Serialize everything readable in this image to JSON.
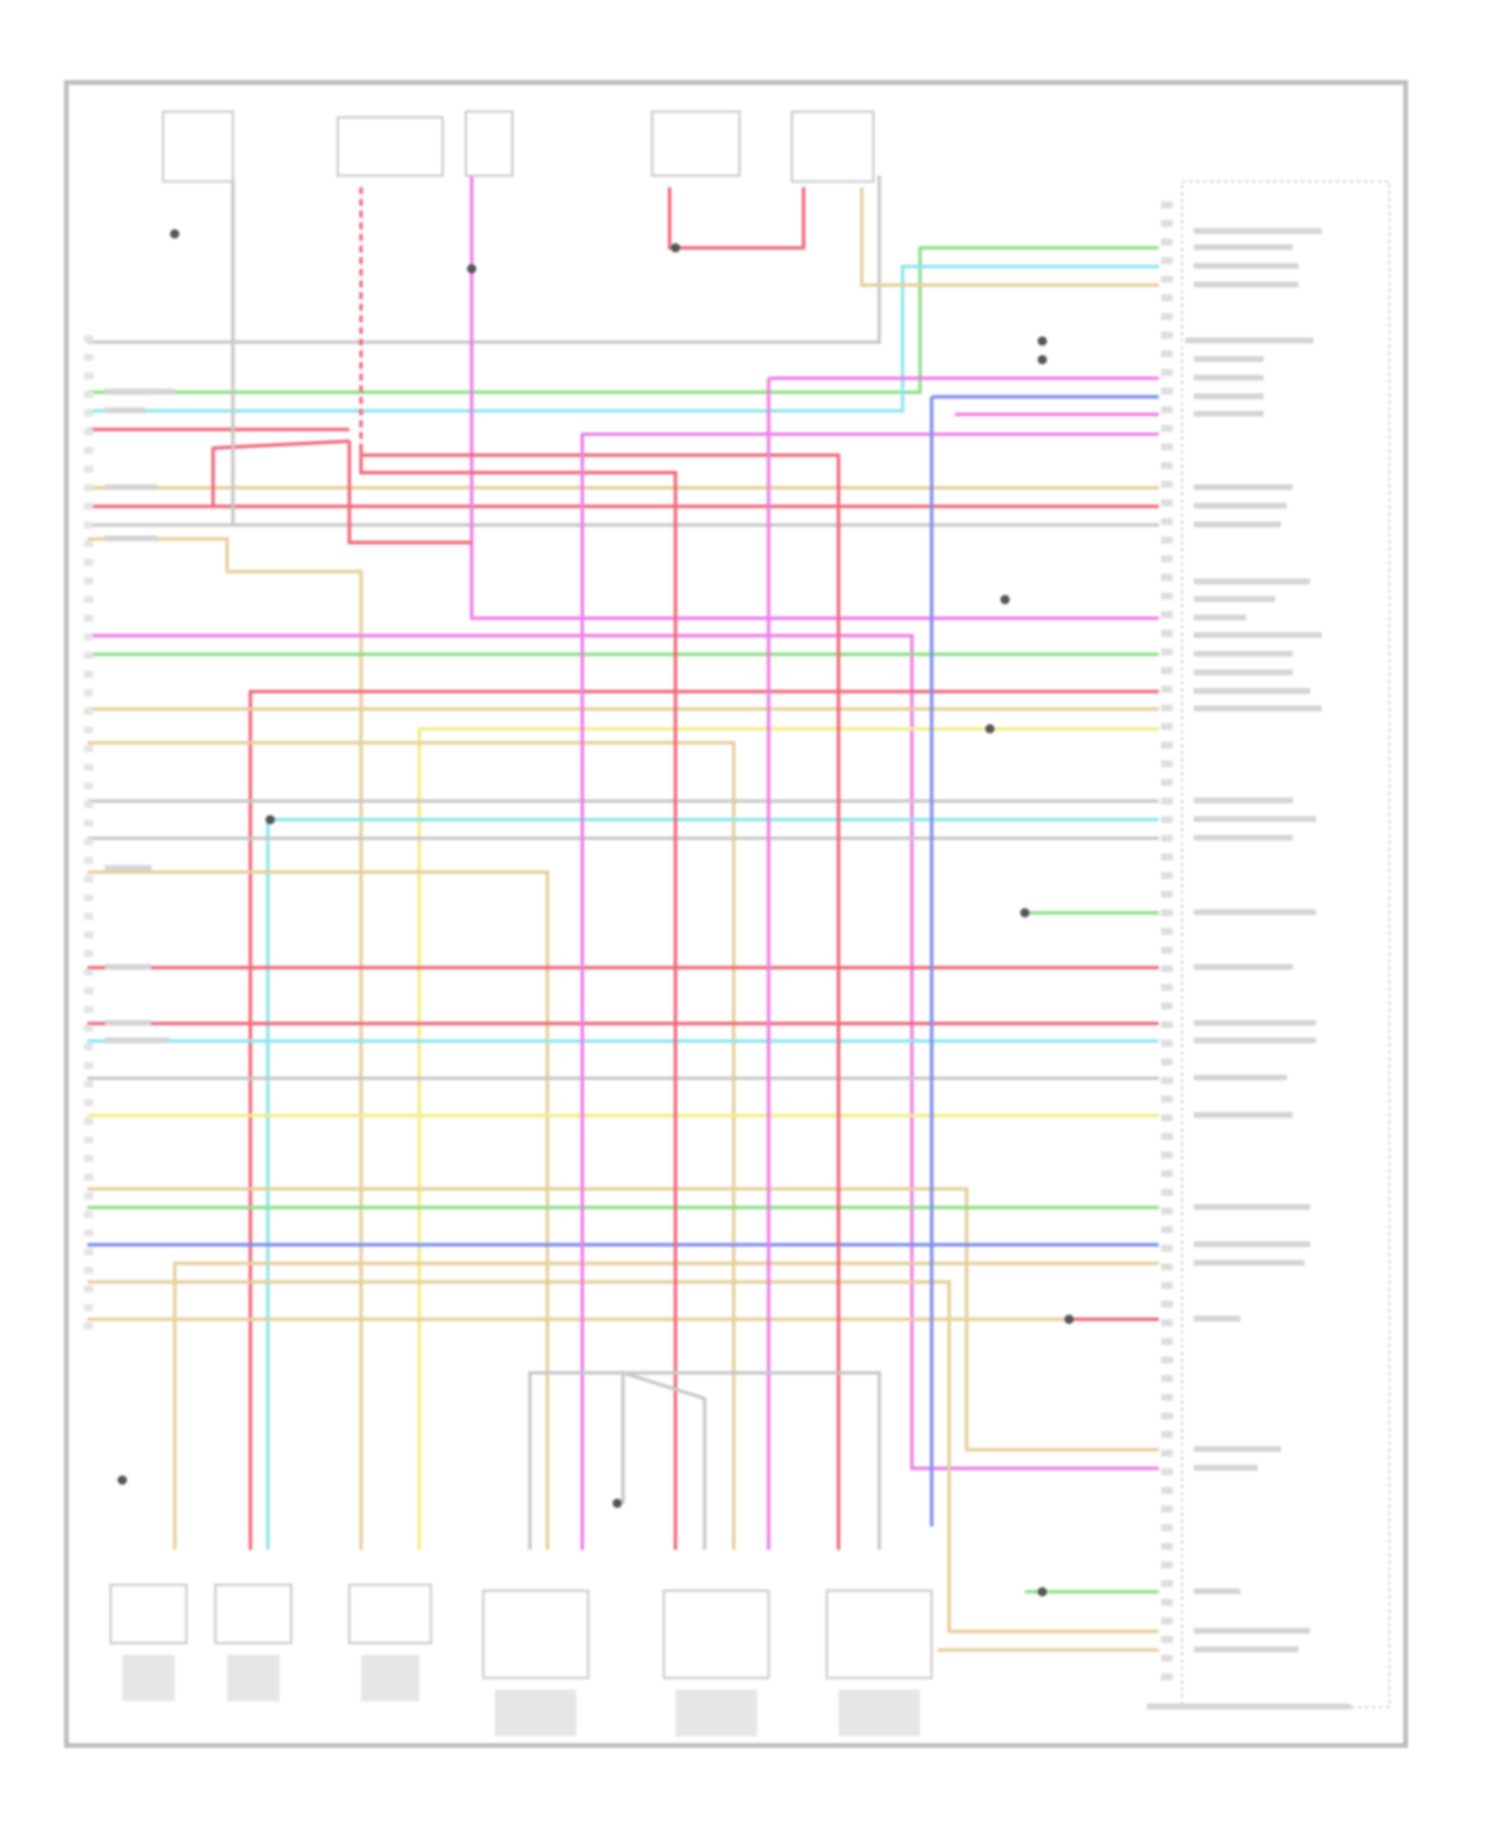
{
  "diagram": {
    "type": "wiring-schematic",
    "labels_legible": false,
    "wire_colors": {
      "red": "#f06a7a",
      "pink": "#ee7fe8",
      "green": "#8fe08a",
      "cyan": "#8fe6ee",
      "tan": "#e6cf9a",
      "yellow": "#f2ee8a",
      "blue": "#7f8ff0",
      "gray": "#c8c8c8",
      "frame": "#b8b8b8"
    }
  }
}
